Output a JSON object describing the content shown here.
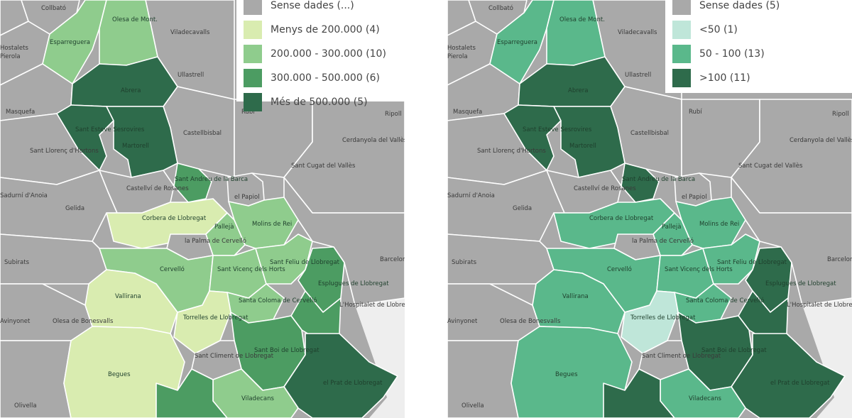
{
  "legend_left": {
    "items": [
      {
        "label": "Sense dades (...)",
        "color": "#a9a9a9"
      },
      {
        "label": "Menys de 200.000 (4)",
        "color": "#d9ecb0"
      },
      {
        "label": "200.000 - 300.000 (10)",
        "color": "#8fcc8d"
      },
      {
        "label": "300.000 - 500.000 (6)",
        "color": "#4c9c62"
      },
      {
        "label": "Més de 500.000 (5)",
        "color": "#2e6b4b"
      }
    ]
  },
  "legend_right": {
    "items": [
      {
        "label": "Sense dades (5)",
        "color": "#a9a9a9"
      },
      {
        "label": "<50 (1)",
        "color": "#bfe6d9"
      },
      {
        "label": "50 - 100 (13)",
        "color": "#5ab88b"
      },
      {
        "label": ">100 (11)",
        "color": "#2e6b4b"
      }
    ]
  },
  "place_labels": {
    "collbato": "Collbató",
    "esparreguera": "Esparreguera",
    "viladecavalls": "Viladecavalls",
    "olesa_mont": "Olesa de Mont.",
    "hostalets": "Hostalets",
    "pierola": "Pierola",
    "ullastrell": "Ullastrell",
    "abrera": "Abrera",
    "masquefa": "Masquefa",
    "rubi": "Rubí",
    "ripoll": "Ripoll",
    "sant_esteve": "Sant Esteve Sesrovires",
    "martorell": "Martorell",
    "castellbisbal": "Castellbisbal",
    "cerdanyola": "Cerdanyola del Vallès",
    "sant_llorenc": "Sant Llorenç d'Hortons",
    "sant_andreu": "Sant Andreu de la Barca",
    "sant_cugat": "Sant Cugat del Vallès",
    "castellvi": "Castellví de Rosanes",
    "papiol": "el Papiol",
    "sadurni": "Sadurní d'Anoia",
    "gelida": "Gelida",
    "corbera": "Corbera de Llobregat",
    "pallejà": "Pallejà",
    "molins": "Molins de Rei",
    "palma": "la Palma de Cervelló",
    "subirats": "Subirats",
    "sant_feliu": "Sant Feliu de Llobregat",
    "barcelona": "Barcelona",
    "cervello": "Cervelló",
    "sant_vicenc": "Sant Vicenç dels Horts",
    "esplugues": "Esplugues de Llobregat",
    "vallirana": "Vallirana",
    "santa_coloma": "Santa Coloma de Cervelló",
    "hospitalet": "L'Hospitalet de Llobregat",
    "olesa_bonesvalls": "Olesa de Bonesvalls",
    "torrelles": "Torrelles de Llobregat",
    "avinyonet": "Avinyonet",
    "sant_boi": "Sant Boi de Llobregat",
    "sant_climent": "Sant Climent de Llobregat",
    "el_prat": "el Prat de Llobregat",
    "begues": "Begues",
    "viladecans": "Viladecans",
    "olivella": "Olivella"
  }
}
